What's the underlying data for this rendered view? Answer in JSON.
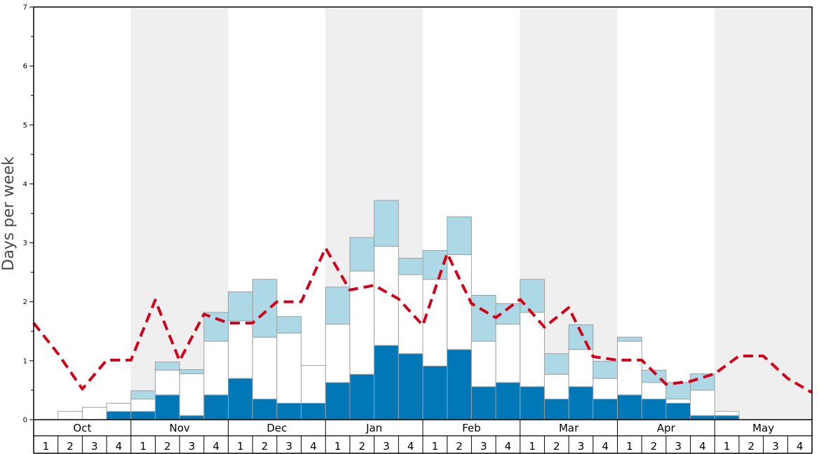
{
  "chart_data": {
    "type": "bar",
    "title": "",
    "xlabel": "",
    "ylabel": "Days per week",
    "ylim": [
      0,
      7
    ],
    "yticks": [
      0,
      1,
      2,
      3,
      4,
      5,
      6,
      7
    ],
    "stacked": true,
    "months": [
      "Oct",
      "Nov",
      "Dec",
      "Jan",
      "Feb",
      "Mar",
      "Apr",
      "May"
    ],
    "week_labels": [
      "1",
      "2",
      "3",
      "4"
    ],
    "categories": [
      "Oct 1",
      "Oct 2",
      "Oct 3",
      "Oct 4",
      "Nov 1",
      "Nov 2",
      "Nov 3",
      "Nov 4",
      "Dec 1",
      "Dec 2",
      "Dec 3",
      "Dec 4",
      "Jan 1",
      "Jan 2",
      "Jan 3",
      "Jan 4",
      "Feb 1",
      "Feb 2",
      "Feb 3",
      "Feb 4",
      "Mar 1",
      "Mar 2",
      "Mar 3",
      "Mar 4",
      "Apr 1",
      "Apr 2",
      "Apr 3",
      "Apr 4",
      "May 1",
      "May 2",
      "May 3",
      "May 4"
    ],
    "series": [
      {
        "color": "#0077b6",
        "values": [
          0,
          0,
          0,
          0.14,
          0.14,
          0.42,
          0.07,
          0.42,
          0.7,
          0.35,
          0.28,
          0.28,
          0.63,
          0.77,
          1.26,
          1.12,
          0.91,
          1.19,
          0.56,
          0.63,
          0.56,
          0.35,
          0.56,
          0.35,
          0.42,
          0.35,
          0.28,
          0.07,
          0.07,
          0,
          0,
          0
        ]
      },
      {
        "color": "#ffffff",
        "values": [
          0,
          0.14,
          0.21,
          0.14,
          0.21,
          0.42,
          0.71,
          0.91,
          0.98,
          1.05,
          1.19,
          0.64,
          0.99,
          1.75,
          1.68,
          1.34,
          1.47,
          1.61,
          0.77,
          0.99,
          1.26,
          0.42,
          0.63,
          0.35,
          0.91,
          0.28,
          0.07,
          0.43,
          0.07,
          0,
          0,
          0
        ]
      },
      {
        "color": "#add8e6",
        "values": [
          0,
          0,
          0,
          0,
          0.14,
          0.14,
          0.07,
          0.49,
          0.49,
          0.98,
          0.28,
          0,
          0.63,
          0.57,
          0.78,
          0.28,
          0.49,
          0.64,
          0.78,
          0.35,
          0.56,
          0.35,
          0.42,
          0.29,
          0.07,
          0.21,
          0.28,
          0.28,
          0,
          0,
          0,
          0
        ]
      }
    ],
    "line": {
      "style": "dashed",
      "color": "#d0021b",
      "x": [
        0,
        1,
        2,
        3,
        4,
        5,
        6,
        7,
        8,
        9,
        10,
        11,
        12,
        13,
        14,
        15,
        16,
        17,
        18,
        19,
        20,
        21,
        22,
        23,
        24,
        25,
        26,
        27,
        28,
        29,
        30,
        31,
        32
      ],
      "values": [
        1.64,
        1.12,
        0.52,
        1.01,
        1.01,
        2.03,
        1.0,
        1.79,
        1.64,
        1.64,
        2.0,
        2.0,
        2.91,
        2.2,
        2.28,
        2.05,
        1.6,
        2.82,
        1.97,
        1.73,
        2.04,
        1.57,
        1.9,
        1.07,
        1.01,
        1.01,
        0.6,
        0.65,
        0.78,
        1.08,
        1.08,
        0.7,
        0.46
      ]
    },
    "shaded_months": [
      "Nov",
      "Jan",
      "Mar",
      "May"
    ],
    "shade_color": "#efefef",
    "grid": false
  }
}
